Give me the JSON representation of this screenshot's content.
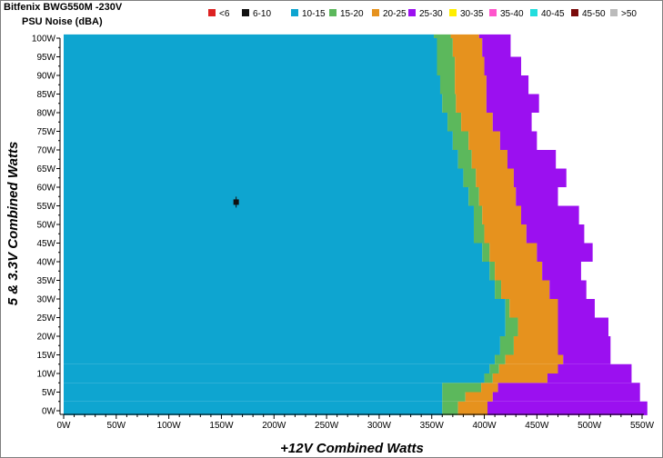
{
  "title": "Bitfenix BWG550M -230V",
  "subtitle": "PSU Noise (dBA)",
  "chart_data": {
    "type": "heatmap",
    "xlabel": "+12V Combined Watts",
    "ylabel": "5 & 3.3V Combined Watts",
    "xlim": [
      0,
      550
    ],
    "ylim": [
      0,
      100
    ],
    "x_ticks": [
      "0W",
      "50W",
      "100W",
      "150W",
      "200W",
      "250W",
      "300W",
      "350W",
      "400W",
      "450W",
      "500W",
      "550W"
    ],
    "y_ticks": [
      "0W",
      "5W",
      "10W",
      "15W",
      "20W",
      "25W",
      "30W",
      "35W",
      "40W",
      "45W",
      "50W",
      "55W",
      "60W",
      "65W",
      "70W",
      "75W",
      "80W",
      "85W",
      "90W",
      "95W",
      "100W"
    ],
    "legend": [
      {
        "label": "<6",
        "color": "#dd2222"
      },
      {
        "label": "6-10",
        "color": "#111111"
      },
      {
        "label": "10-15",
        "color": "#0ea5d0"
      },
      {
        "label": "15-20",
        "color": "#5cb85c"
      },
      {
        "label": "20-25",
        "color": "#e6921e"
      },
      {
        "label": "25-30",
        "color": "#9b10f0"
      },
      {
        "label": "30-35",
        "color": "#ffee00"
      },
      {
        "label": "35-40",
        "color": "#ff55cc"
      },
      {
        "label": "40-45",
        "color": "#22dddd"
      },
      {
        "label": "45-50",
        "color": "#7a0a0a"
      },
      {
        "label": ">50",
        "color": "#bbbbbb"
      }
    ],
    "legend_position": "top",
    "marker": {
      "x": 164,
      "y": 56
    },
    "rows": [
      {
        "y": 0,
        "b10_15": 360,
        "b15_20": 375,
        "b20_25": 403,
        "b25_30": 545,
        "max": 555
      },
      {
        "y": 2.5,
        "b10_15": 360,
        "b15_20": 382,
        "b20_25": 408,
        "b25_30": 447,
        "max": 548
      },
      {
        "y": 5,
        "b10_15": 360,
        "b15_20": 397,
        "b20_25": 413,
        "b25_30": 488,
        "max": 548
      },
      {
        "y": 7.5,
        "b10_15": 400,
        "b15_20": 408,
        "b20_25": 460,
        "b25_30": 540,
        "max": 540
      },
      {
        "y": 10,
        "b10_15": 405,
        "b15_20": 414,
        "b20_25": 470,
        "b25_30": 540,
        "max": 540
      },
      {
        "y": 12.5,
        "b10_15": 410,
        "b15_20": 420,
        "b20_25": 475,
        "b25_30": 520,
        "max": 520
      },
      {
        "y": 15,
        "b10_15": 415,
        "b15_20": 428,
        "b20_25": 470,
        "b25_30": 520,
        "max": 520
      },
      {
        "y": 20,
        "b10_15": 420,
        "b15_20": 432,
        "b20_25": 470,
        "b25_30": 518,
        "max": 518
      },
      {
        "y": 25,
        "b10_15": 420,
        "b15_20": 424,
        "b20_25": 470,
        "b25_30": 505,
        "max": 505
      },
      {
        "y": 30,
        "b10_15": 410,
        "b15_20": 416,
        "b20_25": 462,
        "b25_30": 497,
        "max": 497
      },
      {
        "y": 35,
        "b10_15": 405,
        "b15_20": 410,
        "b20_25": 455,
        "b25_30": 492,
        "max": 492
      },
      {
        "y": 40,
        "b10_15": 398,
        "b15_20": 405,
        "b20_25": 450,
        "b25_30": 488,
        "max": 503
      },
      {
        "y": 45,
        "b10_15": 390,
        "b15_20": 400,
        "b20_25": 440,
        "b25_30": 480,
        "max": 495
      },
      {
        "y": 50,
        "b10_15": 390,
        "b15_20": 398,
        "b20_25": 435,
        "b25_30": 478,
        "max": 490
      },
      {
        "y": 55,
        "b10_15": 385,
        "b15_20": 395,
        "b20_25": 430,
        "b25_30": 470,
        "max": 470
      },
      {
        "y": 60,
        "b10_15": 380,
        "b15_20": 392,
        "b20_25": 428,
        "b25_30": 460,
        "max": 478
      },
      {
        "y": 65,
        "b10_15": 375,
        "b15_20": 388,
        "b20_25": 422,
        "b25_30": 455,
        "max": 468
      },
      {
        "y": 70,
        "b10_15": 370,
        "b15_20": 385,
        "b20_25": 415,
        "b25_30": 450,
        "max": 450
      },
      {
        "y": 75,
        "b10_15": 365,
        "b15_20": 378,
        "b20_25": 408,
        "b25_30": 445,
        "max": 445
      },
      {
        "y": 80,
        "b10_15": 360,
        "b15_20": 373,
        "b20_25": 402,
        "b25_30": 435,
        "max": 452
      },
      {
        "y": 85,
        "b10_15": 358,
        "b15_20": 372,
        "b20_25": 402,
        "b25_30": 425,
        "max": 442
      },
      {
        "y": 90,
        "b10_15": 355,
        "b15_20": 372,
        "b20_25": 400,
        "b25_30": 420,
        "max": 435
      },
      {
        "y": 95,
        "b10_15": 355,
        "b15_20": 370,
        "b20_25": 398,
        "b25_30": 415,
        "max": 425
      },
      {
        "y": 100,
        "b10_15": 352,
        "b15_20": 368,
        "b20_25": 395,
        "b25_30": 415,
        "max": 425
      }
    ]
  }
}
